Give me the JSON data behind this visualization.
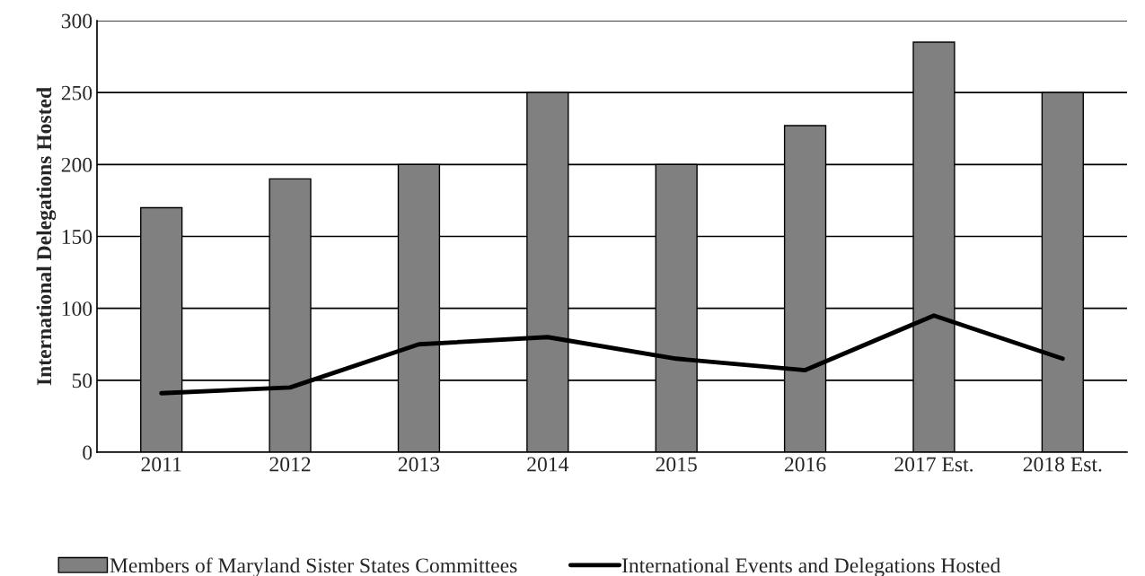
{
  "chart_data": {
    "type": "bar",
    "ylabel": "International Delegations Hosted",
    "categories": [
      "2011",
      "2012",
      "2013",
      "2014",
      "2015",
      "2016",
      "2017 Est.",
      "2018 Est."
    ],
    "series": [
      {
        "name": "Members of Maryland Sister States Committees",
        "color": "#808080",
        "values": [
          170,
          190,
          200,
          250,
          200,
          227,
          285,
          250
        ]
      },
      {
        "name": "International Events and Delegations Hosted",
        "type": "line",
        "color": "#000000",
        "values": [
          41,
          45,
          75,
          80,
          65,
          57,
          95,
          65
        ]
      }
    ],
    "ylim": [
      0,
      300
    ],
    "yticks": [
      0,
      50,
      100,
      150,
      200,
      250,
      300
    ],
    "grid": "y",
    "legend": "bottom",
    "marker": "none",
    "line_style": "solid"
  }
}
